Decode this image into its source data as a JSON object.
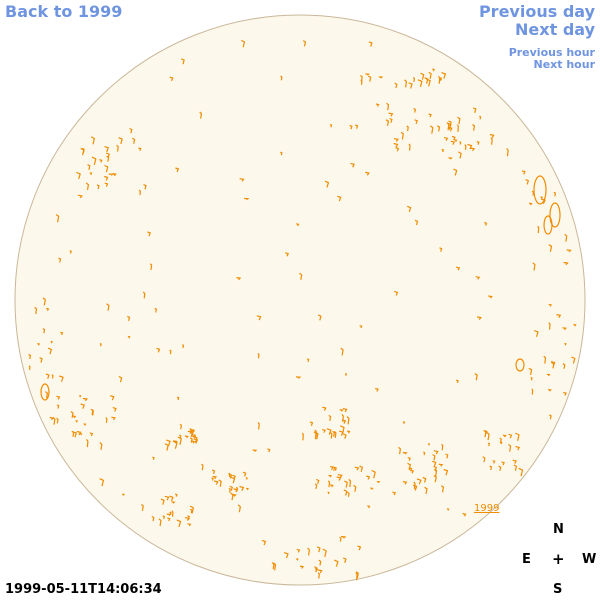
{
  "navigation": {
    "back_label": "Back to 1999",
    "previous_day_label": "Previous day",
    "next_day_label": "Next day",
    "previous_hour_label": "Previous hour",
    "next_hour_label": "Next hour"
  },
  "overlay": {
    "year_label": "1999"
  },
  "timestamp": "1999-05-11T14:06:34",
  "compass": {
    "north": "N",
    "south": "S",
    "east": "E",
    "west": "W",
    "center": "+"
  },
  "colors": {
    "link": "#6f95e0",
    "disk_fill": "#fdf8ec",
    "disk_border": "#c9b79a",
    "contour": "#f08c00",
    "text": "#000000"
  }
}
